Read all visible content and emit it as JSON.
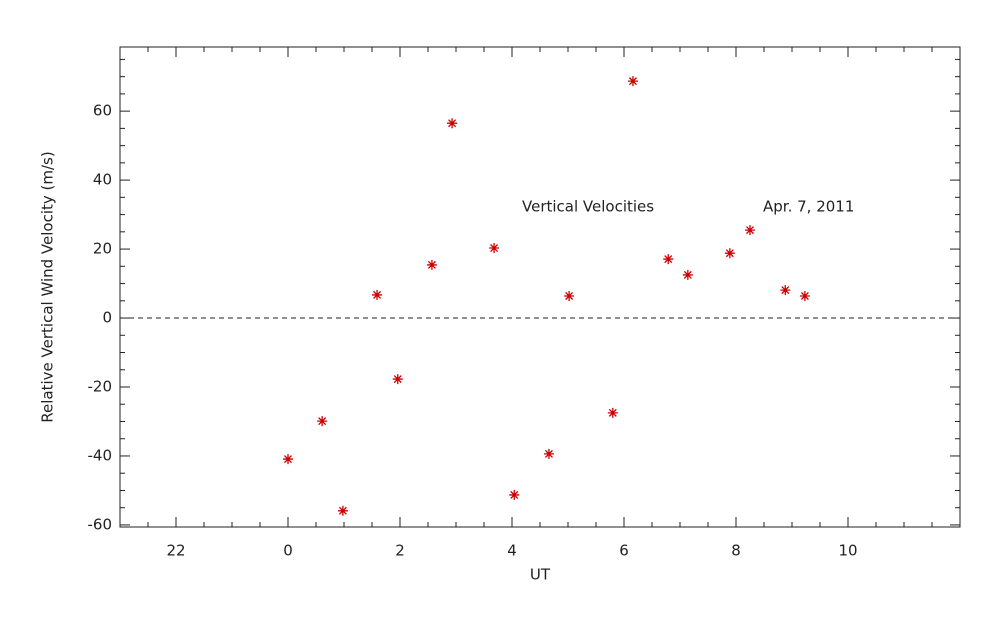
{
  "chart_data": {
    "type": "scatter",
    "xlabel": "UT",
    "ylabel": "Relative Vertical Wind Velocity (m/s)",
    "annotations": [
      "Vertical Velocities",
      "Apr. 7, 2011"
    ],
    "x": [
      0,
      0.61,
      0.98,
      1.59,
      1.96,
      2.57,
      2.93,
      3.68,
      4.04,
      4.66,
      5.02,
      5.8,
      6.16,
      6.79,
      7.14,
      7.89,
      8.25,
      8.88,
      9.23
    ],
    "values": [
      -40.9,
      -29.9,
      -55.9,
      6.7,
      -17.7,
      15.4,
      56.5,
      20.3,
      -51.3,
      -39.4,
      6.4,
      -27.5,
      68.7,
      17.1,
      12.5,
      18.8,
      25.5,
      8.1,
      6.4
    ],
    "color": "#cc0000",
    "marker": "asterisk",
    "xlim": [
      -3,
      12
    ],
    "xticks": [
      {
        "value": -2,
        "label": "22"
      },
      0,
      2,
      4,
      6,
      8,
      10
    ],
    "ylim": [
      -60.6,
      78.6
    ],
    "yticks": [
      -60,
      -40,
      -20,
      0,
      20,
      40,
      60
    ],
    "xminor": 4,
    "yminor": 4,
    "hline": 0
  }
}
